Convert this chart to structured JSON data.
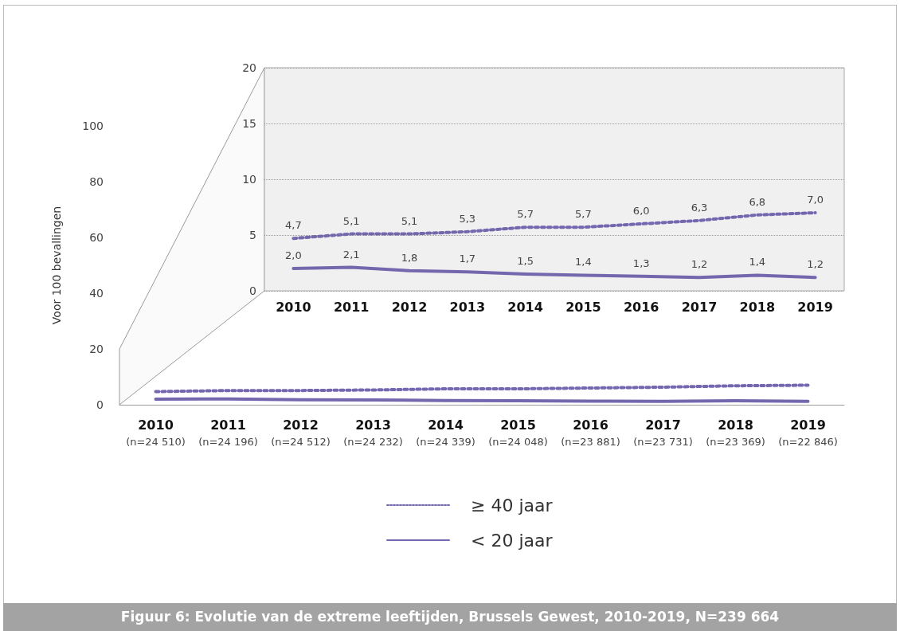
{
  "chart_data": [
    {
      "type": "line",
      "title": "Figuur 6: Evolutie van de extreme leeftijden, Brussels Gewest, 2010-2019, N=239 664",
      "ylabel": "Voor 100 bevallingen",
      "categories": [
        "2010\n(n=24 510)",
        "2011\n(n=24 196)",
        "2012\n(n=24 512)",
        "2013\n(n=24 232)",
        "2014\n(n=24 339)",
        "2015\n(n=24 048)",
        "2016\n(n=23 881)",
        "2017\n(n=23 731)",
        "2018\n(n=23 369)",
        "2019\n(n=22 846)"
      ],
      "series": [
        {
          "name": "≥ 40 jaar",
          "color": "#7467ad",
          "line_style": "dotted",
          "values": [
            4.7,
            5.1,
            5.1,
            5.3,
            5.7,
            5.7,
            6.0,
            6.3,
            6.8,
            7.0
          ]
        },
        {
          "name": "< 20 jaar",
          "color": "#7467ad",
          "line_style": "solid",
          "values": [
            2.0,
            2.1,
            1.8,
            1.7,
            1.5,
            1.4,
            1.3,
            1.2,
            1.4,
            1.2
          ]
        }
      ],
      "ylim": [
        0,
        100
      ],
      "yticks": [
        0,
        20,
        40,
        60,
        80,
        100
      ],
      "grid": false,
      "legend": "bottom",
      "marker": "none"
    },
    {
      "type": "line",
      "categories": [
        "2010",
        "2011",
        "2012",
        "2013",
        "2014",
        "2015",
        "2016",
        "2017",
        "2018",
        "2019"
      ],
      "series": [
        {
          "color": "#7467ad",
          "line_style": "dotted",
          "values": [
            4.7,
            5.1,
            5.1,
            5.3,
            5.7,
            5.7,
            6.0,
            6.3,
            6.8,
            7.0
          ],
          "value_labels": [
            "4,7",
            "5,1",
            "5,1",
            "5,3",
            "5,7",
            "5,7",
            "6,0",
            "6,3",
            "6,8",
            "7,0"
          ]
        },
        {
          "color": "#7467ad",
          "line_style": "solid",
          "values": [
            2.0,
            2.1,
            1.8,
            1.7,
            1.5,
            1.4,
            1.3,
            1.2,
            1.4,
            1.2
          ],
          "value_labels": [
            "2,0",
            "2,1",
            "1,8",
            "1,7",
            "1,5",
            "1,4",
            "1,3",
            "1,2",
            "1,4",
            "1,2"
          ]
        }
      ],
      "ylim": [
        0,
        20
      ],
      "yticks": [
        0,
        5,
        10,
        15,
        20
      ],
      "grid": "y",
      "legend": false,
      "marker": "none"
    }
  ]
}
